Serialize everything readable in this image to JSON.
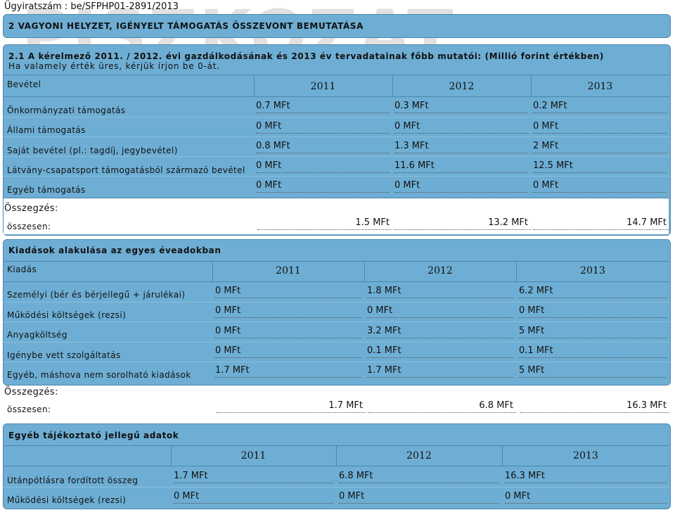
{
  "doc_id": "Ügyiratszám : be/SFPHP01-2891/2013",
  "watermark": "PISZKOZAT",
  "section2": {
    "title": "2 VAGYONI HELYZET, IGÉNYELT TÁMOGATÁS ÖSSZEVONT BEMUTATÁSA"
  },
  "section21": {
    "title": "2.1 A kérelmező 2011. / 2012. évi gazdálkodásának és 2013 év tervadatainak főbb mutatói: (Millió forint értékben)",
    "subtitle": "Ha valamely érték üres, kérjük írjon be 0-át."
  },
  "revenue": {
    "header": "Bevétel",
    "years": [
      "2011",
      "2012",
      "2013"
    ],
    "rows": [
      {
        "label": "Önkormányzati támogatás",
        "values": [
          "0.7 MFt",
          "0.3 MFt",
          "0.2 MFt"
        ]
      },
      {
        "label": "Állami támogatás",
        "values": [
          "0 MFt",
          "0 MFt",
          "0 MFt"
        ]
      },
      {
        "label": "Saját bevétel (pl.: tagdíj, jegybevétel)",
        "values": [
          "0.8 MFt",
          "1.3 MFt",
          "2 MFt"
        ]
      },
      {
        "label": "Látvány-csapatsport támogatásból származó bevétel",
        "values": [
          "0 MFt",
          "11.6 MFt",
          "12.5 MFt"
        ]
      },
      {
        "label": "Egyéb támogatás",
        "values": [
          "0 MFt",
          "0 MFt",
          "0 MFt"
        ]
      }
    ],
    "summary_label": "Összegzés:",
    "total_label": "összesen:",
    "totals": [
      "1.5  MFt",
      "13.2  MFt",
      "14.7  MFt"
    ]
  },
  "expenses": {
    "title": "Kiadások alakulása az egyes éveadokban",
    "header": "Kiadás",
    "years": [
      "2011",
      "2012",
      "2013"
    ],
    "rows": [
      {
        "label": "Személyi (bér és bérjellegű + járulékai)",
        "values": [
          "0 MFt",
          "1.8 MFt",
          "6.2 MFt"
        ]
      },
      {
        "label": "Működési költségek (rezsi)",
        "values": [
          "0 MFt",
          "0 MFt",
          "0 MFt"
        ]
      },
      {
        "label": "Anyagköltség",
        "values": [
          "0 MFt",
          "3.2 MFt",
          "5 MFt"
        ]
      },
      {
        "label": "Igénybe vett szolgáltatás",
        "values": [
          "0 MFt",
          "0.1 MFt",
          "0.1 MFt"
        ]
      },
      {
        "label": "Egyéb, máshova nem sorolható kiadások",
        "values": [
          "1.7 MFt",
          "1.7 MFt",
          "5 MFt"
        ]
      }
    ],
    "summary_label": "Összegzés:",
    "total_label": "összesen:",
    "totals": [
      "1.7  MFt",
      "6.8  MFt",
      "16.3  MFt"
    ]
  },
  "other": {
    "title": "Egyéb tájékoztató jellegű adatok",
    "years": [
      "2011",
      "2012",
      "2013"
    ],
    "rows": [
      {
        "label": "Utánpótlásra fordított összeg",
        "values": [
          "1.7 MFt",
          "6.8 MFt",
          "16.3 MFt"
        ]
      },
      {
        "label": "Működési költségek (rezsi)",
        "values": [
          "0 MFt",
          "0 MFt",
          "0 MFt"
        ]
      }
    ]
  }
}
